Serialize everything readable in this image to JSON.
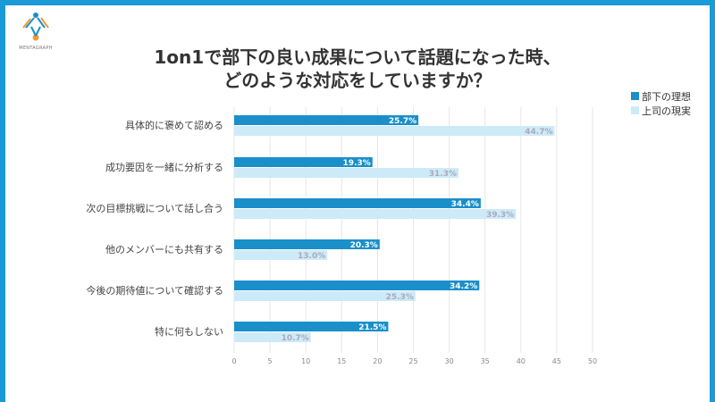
{
  "brand": {
    "logo_text": "MENTAGRAPH"
  },
  "chart_data": {
    "type": "bar",
    "orientation": "horizontal",
    "title": "1on1で部下の良い成果について話題になった時、どのような対応をしていますか？",
    "title_lines": [
      "1on1で部下の良い成果について話題になった時、",
      "どのような対応をしていますか？"
    ],
    "categories": [
      "具体的に褒めて認める",
      "成功要因を一緒に分析する",
      "次の目標挑戦について話し合う",
      "他のメンバーにも共有する",
      "今後の期待値について確認する",
      "特に何もしない"
    ],
    "series": [
      {
        "name": "部下の理想",
        "color": "#1a8fca",
        "values": [
          25.7,
          19.3,
          34.4,
          20.3,
          34.2,
          21.5
        ]
      },
      {
        "name": "上司の現実",
        "color": "#cdeaf8",
        "values": [
          44.7,
          31.3,
          39.3,
          13.0,
          25.3,
          10.7
        ]
      }
    ],
    "xlim": [
      0,
      50
    ],
    "xticks": [
      0,
      5,
      10,
      15,
      20,
      25,
      30,
      35,
      40,
      45,
      50
    ],
    "value_suffix": "%",
    "grid": true,
    "legend_position": "top-right"
  },
  "colors": {
    "frame": "#1a9bd7",
    "grid": "#e6e6e6"
  }
}
